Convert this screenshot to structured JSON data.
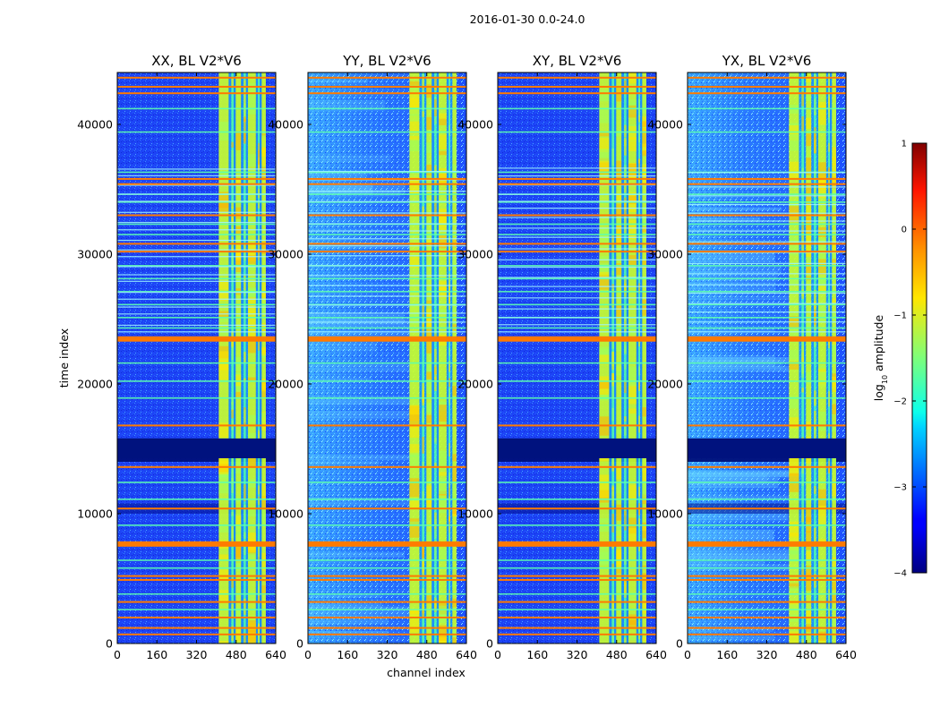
{
  "chart_data": {
    "type": "heatmap",
    "suptitle": "2016-01-30 0.0-24.0",
    "xlabel": "channel index",
    "ylabel": "time index",
    "xlim": [
      0,
      640
    ],
    "ylim": [
      0,
      44000
    ],
    "xticks": [
      0,
      160,
      320,
      480,
      640
    ],
    "yticks": [
      0,
      10000,
      20000,
      30000,
      40000
    ],
    "xtick_labels": [
      "0",
      "160",
      "320",
      "480",
      "640"
    ],
    "ytick_labels": [
      "0",
      "10000",
      "20000",
      "30000",
      "40000"
    ],
    "colorbar": {
      "label": "log10 amplitude",
      "label_prefix": "log",
      "label_sub": "10",
      "label_suffix": " amplitude",
      "range": [
        -4,
        1
      ],
      "ticks": [
        1,
        0,
        -1,
        -2,
        -3,
        -4
      ],
      "tick_labels": [
        "1",
        "0",
        "−1",
        "−2",
        "−3",
        "−4"
      ],
      "colormap": "jet"
    },
    "panels": [
      {
        "title": "XX, BL V2*V6",
        "variant": "parallel"
      },
      {
        "title": "YY, BL V2*V6",
        "variant": "parallel-bright"
      },
      {
        "title": "XY, BL V2*V6",
        "variant": "cross"
      },
      {
        "title": "YX, BL V2*V6",
        "variant": "cross-bright"
      }
    ],
    "rfi_channel_bands": [
      [
        410,
        450
      ],
      [
        460,
        470
      ],
      [
        478,
        500
      ],
      [
        510,
        520
      ],
      [
        528,
        560
      ],
      [
        568,
        575
      ],
      [
        583,
        600
      ]
    ],
    "strong_rfi_times": [
      700,
      1200,
      2000,
      3200,
      4900,
      5200,
      7600,
      7800,
      10400,
      13600,
      16800,
      23400,
      23600,
      30200,
      30800,
      33000,
      35400,
      35800,
      42400,
      42900,
      43600
    ],
    "weak_rfi_times": [
      2600,
      3800,
      5800,
      6400,
      9100,
      11100,
      12400,
      18900,
      20200,
      21600,
      24300,
      25100,
      26100,
      27100,
      28100,
      29100,
      31500,
      32300,
      34000,
      34600,
      36300,
      39400,
      41200
    ],
    "masked_time_ranges": [
      [
        14000,
        15800
      ],
      [
        10000,
        10800
      ]
    ]
  }
}
